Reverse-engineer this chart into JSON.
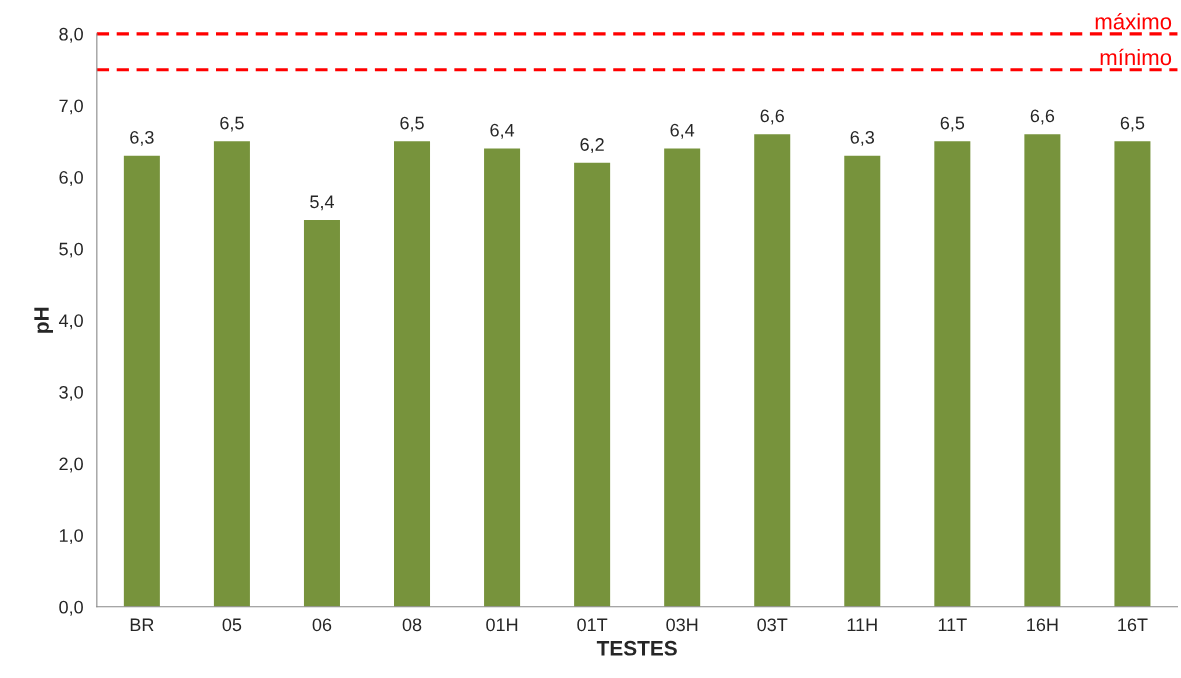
{
  "chart_data": {
    "type": "bar",
    "xlabel": "TESTES",
    "ylabel": "pH",
    "categories": [
      "BR",
      "05",
      "06",
      "08",
      "01H",
      "01T",
      "03H",
      "03T",
      "11H",
      "11T",
      "16H",
      "16T"
    ],
    "values": [
      6.3,
      6.5,
      5.4,
      6.5,
      6.4,
      6.2,
      6.4,
      6.6,
      6.3,
      6.5,
      6.6,
      6.5
    ],
    "value_labels": [
      "6,3",
      "6,5",
      "5,4",
      "6,5",
      "6,4",
      "6,2",
      "6,4",
      "6,6",
      "6,3",
      "6,5",
      "6,6",
      "6,5"
    ],
    "color": "#77933c",
    "ylim": [
      0,
      8
    ],
    "yticks": [
      {
        "value": 0,
        "label": "0,0"
      },
      {
        "value": 1,
        "label": "1,0"
      },
      {
        "value": 2,
        "label": "2,0"
      },
      {
        "value": 3,
        "label": "3,0"
      },
      {
        "value": 4,
        "label": "4,0"
      },
      {
        "value": 5,
        "label": "5,0"
      },
      {
        "value": 6,
        "label": "6,0"
      },
      {
        "value": 7,
        "label": "7,0"
      },
      {
        "value": 8,
        "label": "8,0"
      }
    ],
    "ref_lines": [
      {
        "axis": "y",
        "value": 8,
        "label": "máximo",
        "color": "#ff0000",
        "line_style": "dashed"
      },
      {
        "axis": "y",
        "value": 7.5,
        "label": "mínimo",
        "color": "#ff0000",
        "line_style": "dashed"
      }
    ],
    "grid": false,
    "legend": false
  }
}
